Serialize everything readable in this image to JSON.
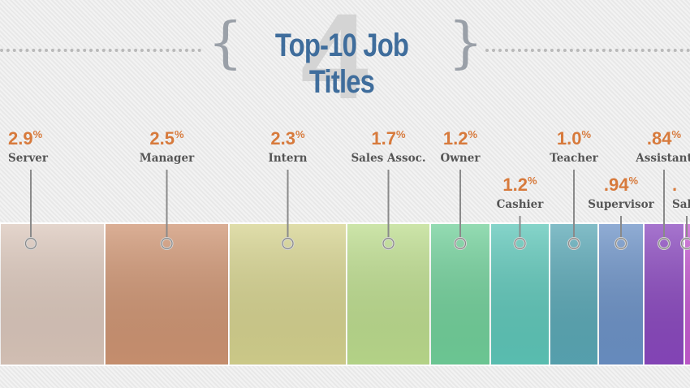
{
  "header": {
    "title": "Top-10 Job Titles",
    "big_number": "4"
  },
  "colors": {
    "value_text": "#d77a3c",
    "label_text": "#555555",
    "title_text": "#3f6d9c"
  },
  "chart_data": {
    "type": "bar",
    "title": "Top-10 Job Titles",
    "unit": "%",
    "categories": [
      "Server",
      "Manager",
      "Intern",
      "Sales Assoc.",
      "Owner",
      "Cashier",
      "Teacher",
      "Supervisor",
      "Assistant",
      "Sal"
    ],
    "values": [
      2.9,
      2.5,
      2.3,
      1.7,
      1.2,
      1.2,
      1.0,
      0.94,
      0.84,
      null
    ],
    "value_labels": [
      "2.9",
      "2.5",
      "2.3",
      "1.7",
      "1.2",
      "1.2",
      "1.0",
      ".94",
      ".84",
      "."
    ],
    "label_row": [
      "top",
      "top",
      "top",
      "top",
      "top",
      "bottom",
      "top",
      "bottom",
      "top",
      "bottom"
    ],
    "segment_colors": [
      "#dcc8bc",
      "#cf9573",
      "#d6d38f",
      "#bddd8e",
      "#71d09a",
      "#5ec7b9",
      "#5aa8b6",
      "#6c92c7",
      "#8a48bf",
      "#c45ad0"
    ]
  }
}
